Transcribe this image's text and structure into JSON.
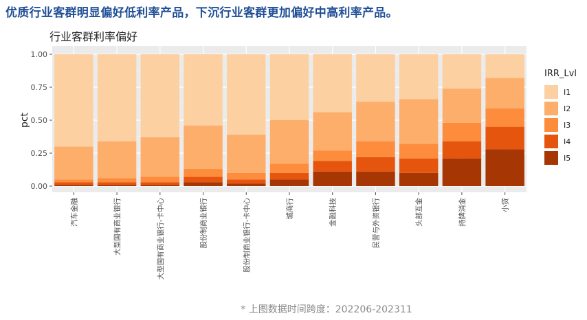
{
  "headline": "优质行业客群明显偏好低利率产品，下沉行业客群更加偏好中高利率产品。",
  "footnote": "* 上图数据时间跨度：202206-202311",
  "colors": {
    "I1": "#fdd0a2",
    "I2": "#fdae6b",
    "I3": "#fd8d3c",
    "I4": "#e6550d",
    "I5": "#a63603"
  },
  "chart_data": {
    "type": "bar",
    "stacked": true,
    "title": "行业客群利率偏好",
    "xlabel": "",
    "ylabel": "pct",
    "ylim": [
      0,
      1
    ],
    "yticks": [
      "0.00",
      "0.25",
      "0.50",
      "0.75",
      "1.00"
    ],
    "grid": true,
    "legend_title": "IRR_Lvl",
    "legend_position": "right",
    "categories": [
      "汽车金融",
      "大型国有商业银行",
      "大型国有商业银行-卡中心",
      "股份制商业银行",
      "股份制商业银行-卡中心",
      "城商行",
      "金融科技",
      "民营与外资银行",
      "头部互金",
      "持牌消金",
      "小贷"
    ],
    "series": [
      {
        "name": "I5",
        "values": [
          0.01,
          0.01,
          0.01,
          0.03,
          0.02,
          0.05,
          0.11,
          0.11,
          0.1,
          0.21,
          0.28
        ]
      },
      {
        "name": "I4",
        "values": [
          0.02,
          0.02,
          0.02,
          0.04,
          0.03,
          0.05,
          0.08,
          0.11,
          0.11,
          0.13,
          0.17
        ]
      },
      {
        "name": "I3",
        "values": [
          0.02,
          0.03,
          0.04,
          0.06,
          0.05,
          0.07,
          0.08,
          0.12,
          0.11,
          0.14,
          0.14
        ]
      },
      {
        "name": "I2",
        "values": [
          0.25,
          0.28,
          0.3,
          0.33,
          0.29,
          0.33,
          0.29,
          0.3,
          0.34,
          0.26,
          0.23
        ]
      },
      {
        "name": "I1",
        "values": [
          0.7,
          0.66,
          0.63,
          0.54,
          0.61,
          0.5,
          0.44,
          0.36,
          0.34,
          0.26,
          0.18
        ]
      }
    ]
  }
}
